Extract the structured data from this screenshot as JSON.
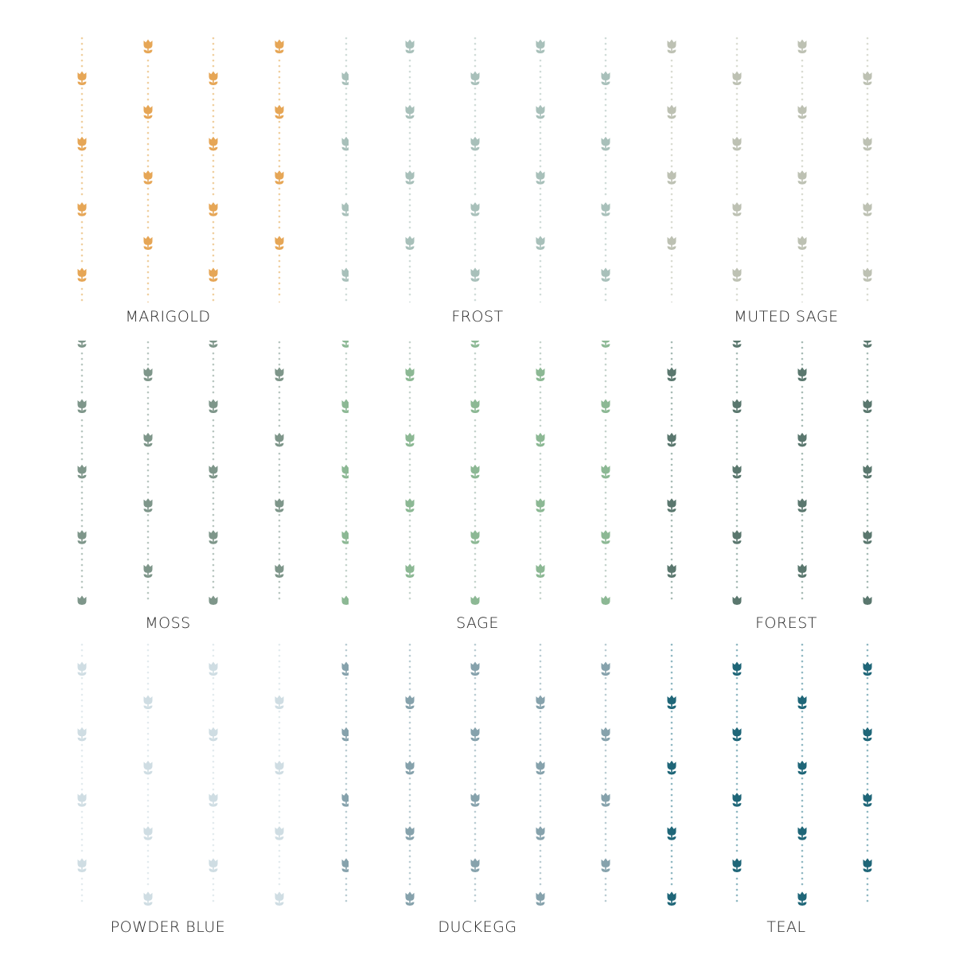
{
  "swatches": [
    {
      "name": "MARIGOLD",
      "color": "#e6a656",
      "dot": "#f0cf9f"
    },
    {
      "name": "FROST",
      "color": "#a8c0ba",
      "dot": "#cfdcd8"
    },
    {
      "name": "MUTED SAGE",
      "color": "#bdc1b3",
      "dot": "#d9dcd2"
    },
    {
      "name": "MOSS",
      "color": "#7e968a",
      "dot": "#b8c6c0"
    },
    {
      "name": "SAGE",
      "color": "#8cb894",
      "dot": "#c4d3cc"
    },
    {
      "name": "FOREST",
      "color": "#5a776e",
      "dot": "#a7bbb5"
    },
    {
      "name": "POWDER BLUE",
      "color": "#cfdde3",
      "dot": "#e3ebee"
    },
    {
      "name": "DUCKEGG",
      "color": "#86a2ac",
      "dot": "#b9ccd2"
    },
    {
      "name": "TEAL",
      "color": "#1f6678",
      "dot": "#8fb8c2"
    }
  ]
}
